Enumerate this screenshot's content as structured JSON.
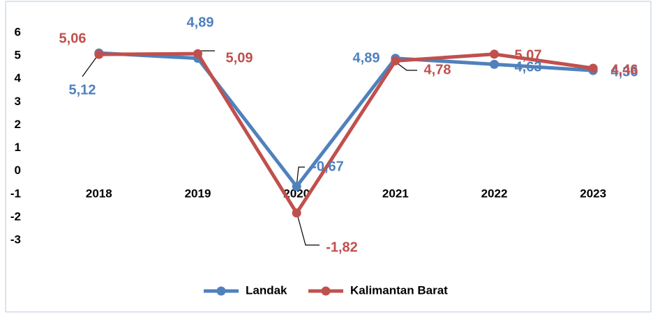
{
  "chart_data": {
    "type": "line",
    "categories": [
      "2018",
      "2019",
      "2020",
      "2021",
      "2022",
      "2023"
    ],
    "series": [
      {
        "name": "Landak",
        "color": "#4f81bd",
        "values": [
          5.12,
          4.89,
          -0.67,
          4.89,
          4.63,
          4.36
        ],
        "value_labels": [
          "5,12",
          "4,89",
          "-0,67",
          "4,89",
          "4,63",
          "4,36"
        ]
      },
      {
        "name": "Kalimantan Barat",
        "color": "#c0504d",
        "values": [
          5.06,
          5.09,
          -1.82,
          4.78,
          5.07,
          4.46
        ],
        "value_labels": [
          "5,06",
          "5,09",
          "-1,82",
          "4,78",
          "5,07",
          "4,46"
        ]
      }
    ],
    "ylim": [
      -3,
      6
    ],
    "yticks": [
      -3,
      -2,
      -1,
      0,
      1,
      2,
      3,
      4,
      5,
      6
    ],
    "grid": false,
    "legend": "bottom"
  }
}
